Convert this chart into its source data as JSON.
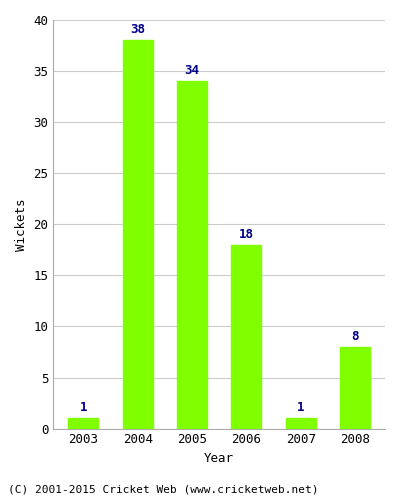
{
  "years": [
    "2003",
    "2004",
    "2005",
    "2006",
    "2007",
    "2008"
  ],
  "values": [
    1,
    38,
    34,
    18,
    1,
    8
  ],
  "bar_color": "#7FFF00",
  "label_color": "#00008B",
  "xlabel": "Year",
  "ylabel": "Wickets",
  "ylim": [
    0,
    40
  ],
  "yticks": [
    0,
    5,
    10,
    15,
    20,
    25,
    30,
    35,
    40
  ],
  "footer": "(C) 2001-2015 Cricket Web (www.cricketweb.net)",
  "background_color": "#ffffff",
  "plot_bg_color": "#ffffff",
  "grid_color": "#cccccc",
  "bar_width": 0.55,
  "label_fontsize": 9,
  "axis_label_fontsize": 9,
  "tick_fontsize": 9,
  "footer_fontsize": 8
}
